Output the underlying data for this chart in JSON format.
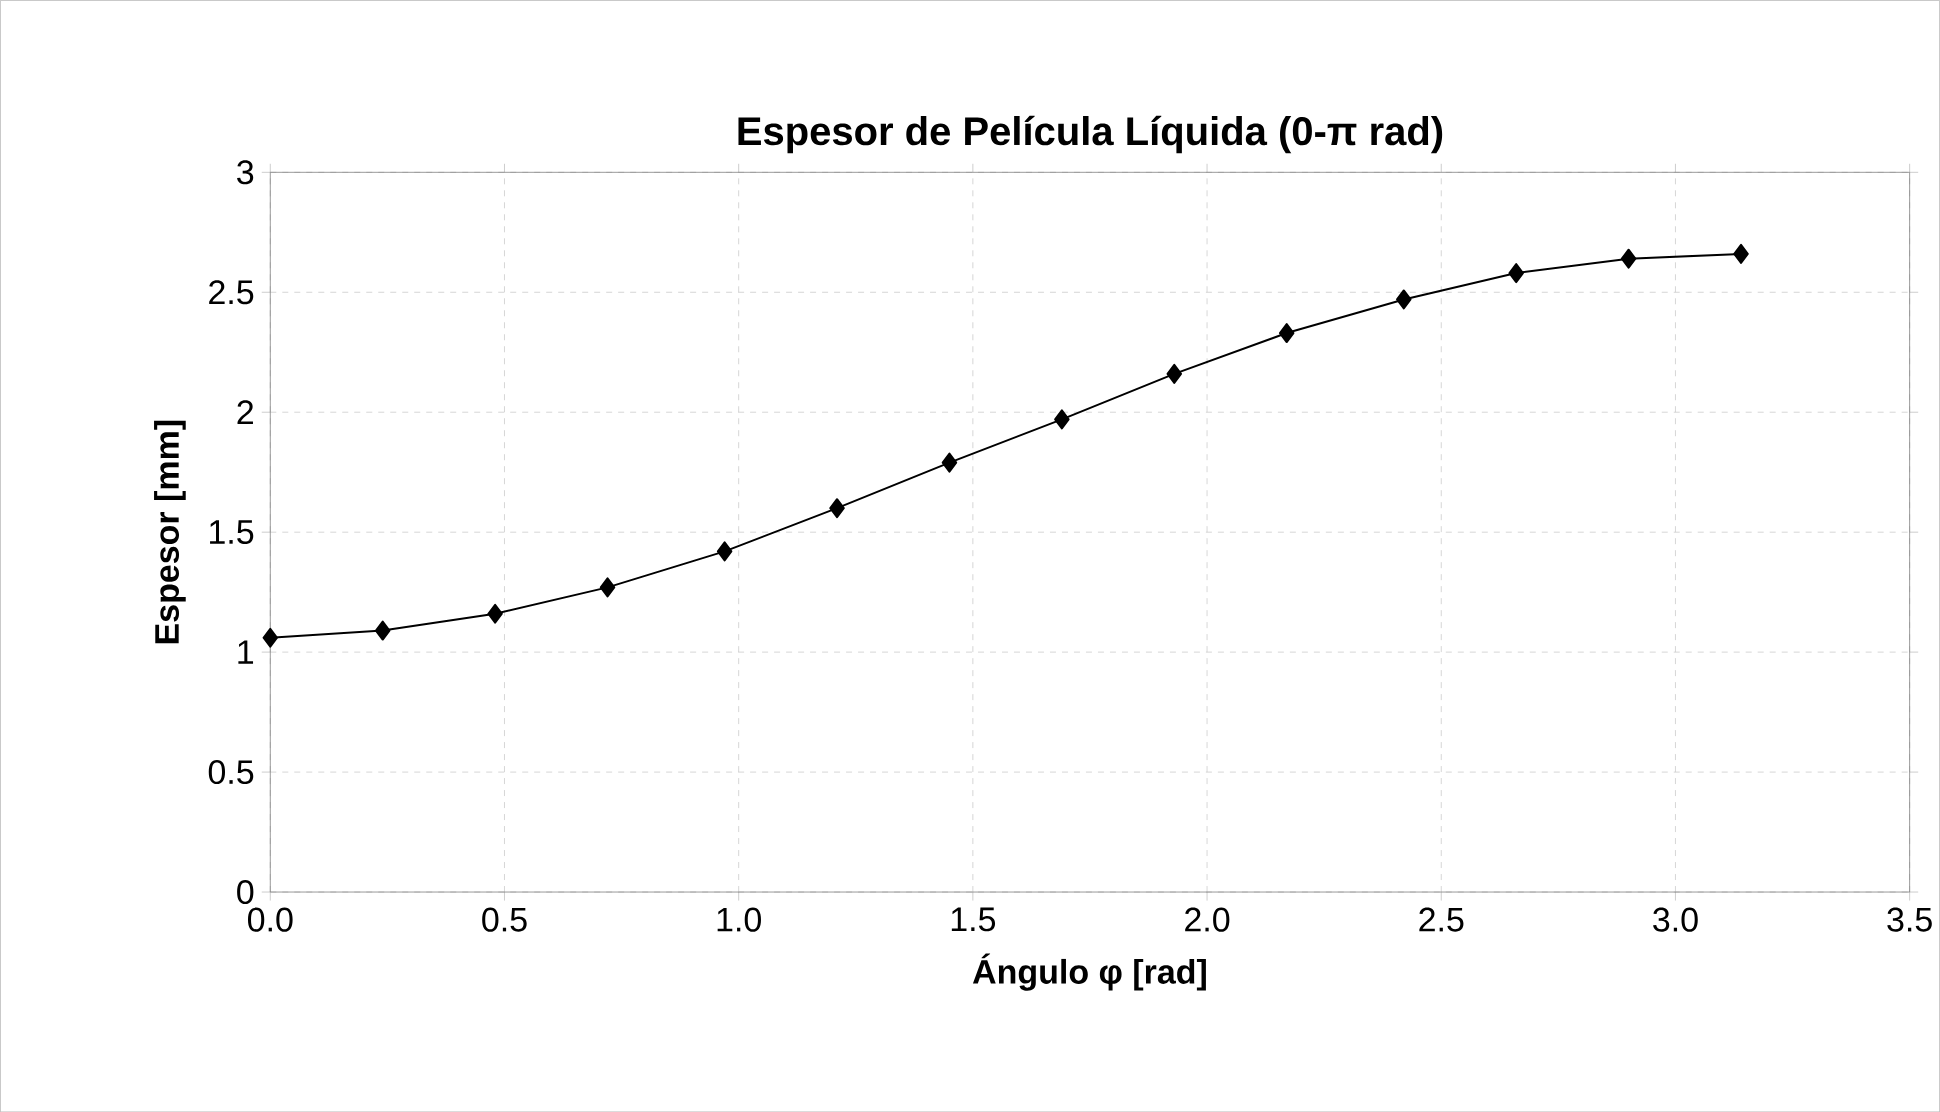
{
  "chart_data": {
    "type": "line",
    "title": "Espesor de Película Líquida (0-π rad)",
    "xlabel": "Ángulo φ [rad]",
    "ylabel": "Espesor [mm]",
    "x": [
      0,
      0.24,
      0.48,
      0.72,
      0.97,
      1.21,
      1.45,
      1.69,
      1.93,
      2.17,
      2.42,
      2.66,
      2.9,
      3.14
    ],
    "series": [
      {
        "color": "#000000",
        "values": [
          1.06,
          1.09,
          1.16,
          1.27,
          1.42,
          1.6,
          1.79,
          1.97,
          2.16,
          2.33,
          2.47,
          2.58,
          2.64,
          2.66
        ]
      }
    ],
    "xlim": [
      0,
      3.5
    ],
    "ylim": [
      0,
      3
    ],
    "xticks": [
      {
        "value": 0,
        "label": "0.0"
      },
      0.5,
      {
        "value": 1,
        "label": "1.0"
      },
      1.5,
      {
        "value": 2,
        "label": "2.0"
      },
      2.5,
      {
        "value": 3,
        "label": "3.0"
      },
      3.5
    ],
    "yticks": [
      0,
      0.5,
      1,
      1.5,
      2,
      2.5,
      3
    ],
    "grid": true,
    "marker": "diamond",
    "line_style": "solid"
  }
}
